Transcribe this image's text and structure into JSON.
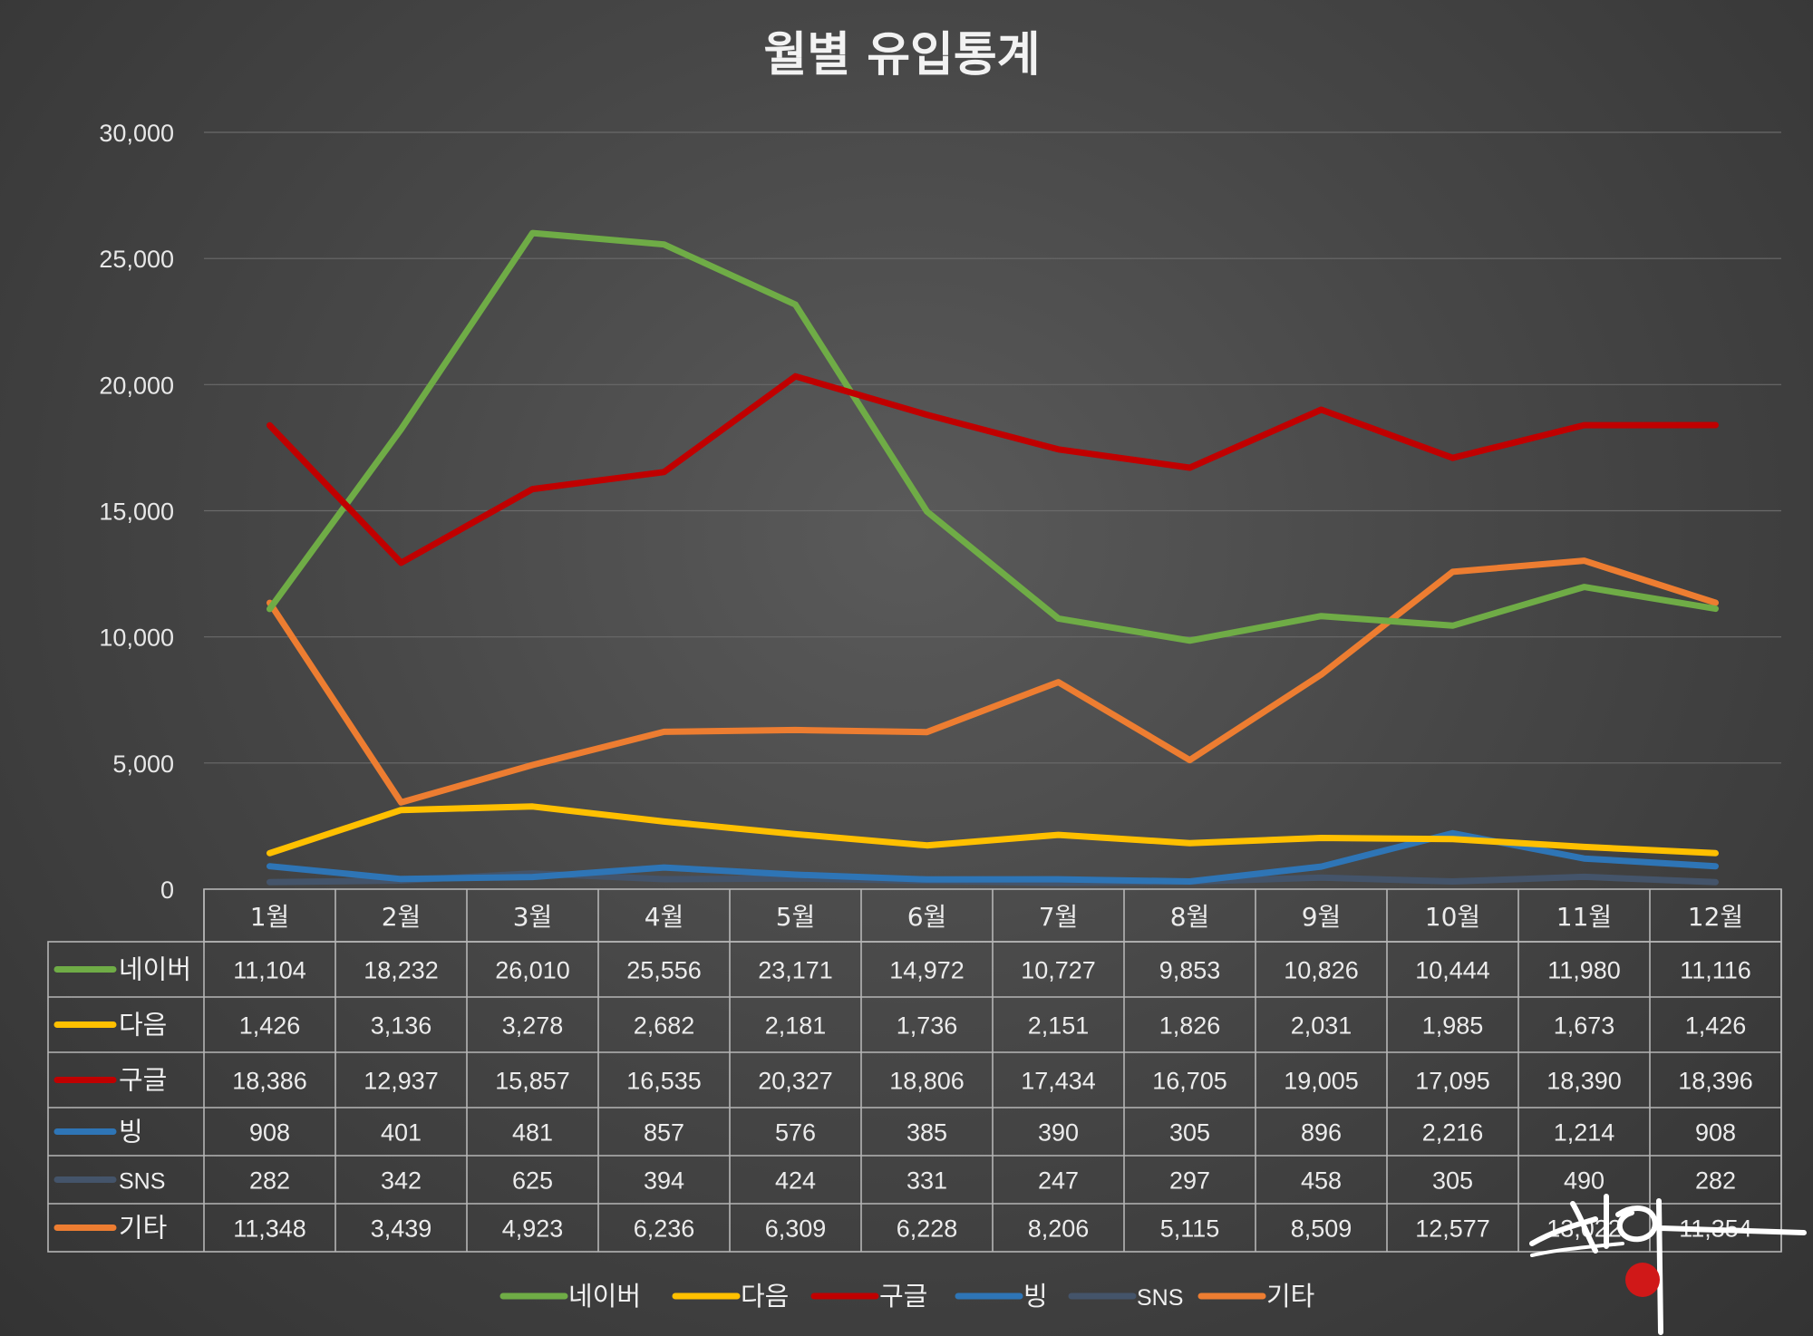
{
  "chart_data": {
    "type": "line",
    "title": "월별 유입통계",
    "categories": [
      "1월",
      "2월",
      "3월",
      "4월",
      "5월",
      "6월",
      "7월",
      "8월",
      "9월",
      "10월",
      "11월",
      "12월"
    ],
    "ylim": [
      0,
      30000
    ],
    "yticks": [
      "0",
      "5,000",
      "10,000",
      "15,000",
      "20,000",
      "25,000",
      "30,000"
    ],
    "ytick_values": [
      0,
      5000,
      10000,
      15000,
      20000,
      25000,
      30000
    ],
    "grid": true,
    "legend_position": "bottom",
    "data_table": true,
    "series": [
      {
        "name": "네이버",
        "color": "#6fac46",
        "values": [
          11104,
          18232,
          26010,
          25556,
          23171,
          14972,
          10727,
          9853,
          10826,
          10444,
          11980,
          11116
        ],
        "labels": [
          "11,104",
          "18,232",
          "26,010",
          "25,556",
          "23,171",
          "14,972",
          "10,727",
          "9,853",
          "10,826",
          "10,444",
          "11,980",
          "11,116"
        ]
      },
      {
        "name": "다음",
        "color": "#ffc000",
        "values": [
          1426,
          3136,
          3278,
          2682,
          2181,
          1736,
          2151,
          1826,
          2031,
          1985,
          1673,
          1426
        ],
        "labels": [
          "1,426",
          "3,136",
          "3,278",
          "2,682",
          "2,181",
          "1,736",
          "2,151",
          "1,826",
          "2,031",
          "1,985",
          "1,673",
          "1,426"
        ]
      },
      {
        "name": "구글",
        "color": "#c00000",
        "values": [
          18386,
          12937,
          15857,
          16535,
          20327,
          18806,
          17434,
          16705,
          19005,
          17095,
          18390,
          18396
        ],
        "labels": [
          "18,386",
          "12,937",
          "15,857",
          "16,535",
          "20,327",
          "18,806",
          "17,434",
          "16,705",
          "19,005",
          "17,095",
          "18,390",
          "18,396"
        ]
      },
      {
        "name": "빙",
        "color": "#2e75b6",
        "values": [
          908,
          401,
          481,
          857,
          576,
          385,
          390,
          305,
          896,
          2216,
          1214,
          908
        ],
        "labels": [
          "908",
          "401",
          "481",
          "857",
          "576",
          "385",
          "390",
          "305",
          "896",
          "2,216",
          "1,214",
          "908"
        ]
      },
      {
        "name": "SNS",
        "color": "#44546a",
        "values": [
          282,
          342,
          625,
          394,
          424,
          331,
          247,
          297,
          458,
          305,
          490,
          282
        ],
        "labels": [
          "282",
          "342",
          "625",
          "394",
          "424",
          "331",
          "247",
          "297",
          "458",
          "305",
          "490",
          "282"
        ]
      },
      {
        "name": "기타",
        "color": "#ed7d31",
        "values": [
          11348,
          3439,
          4923,
          6236,
          6309,
          6228,
          8206,
          5115,
          8509,
          12577,
          13022,
          11354
        ],
        "labels": [
          "11,348",
          "3,439",
          "4,923",
          "6,236",
          "6,309",
          "6,228",
          "8,206",
          "5,115",
          "8,509",
          "12,577",
          "13,022",
          "11,354"
        ]
      }
    ]
  },
  "watermark": {
    "text": "시아",
    "seal": "視"
  }
}
